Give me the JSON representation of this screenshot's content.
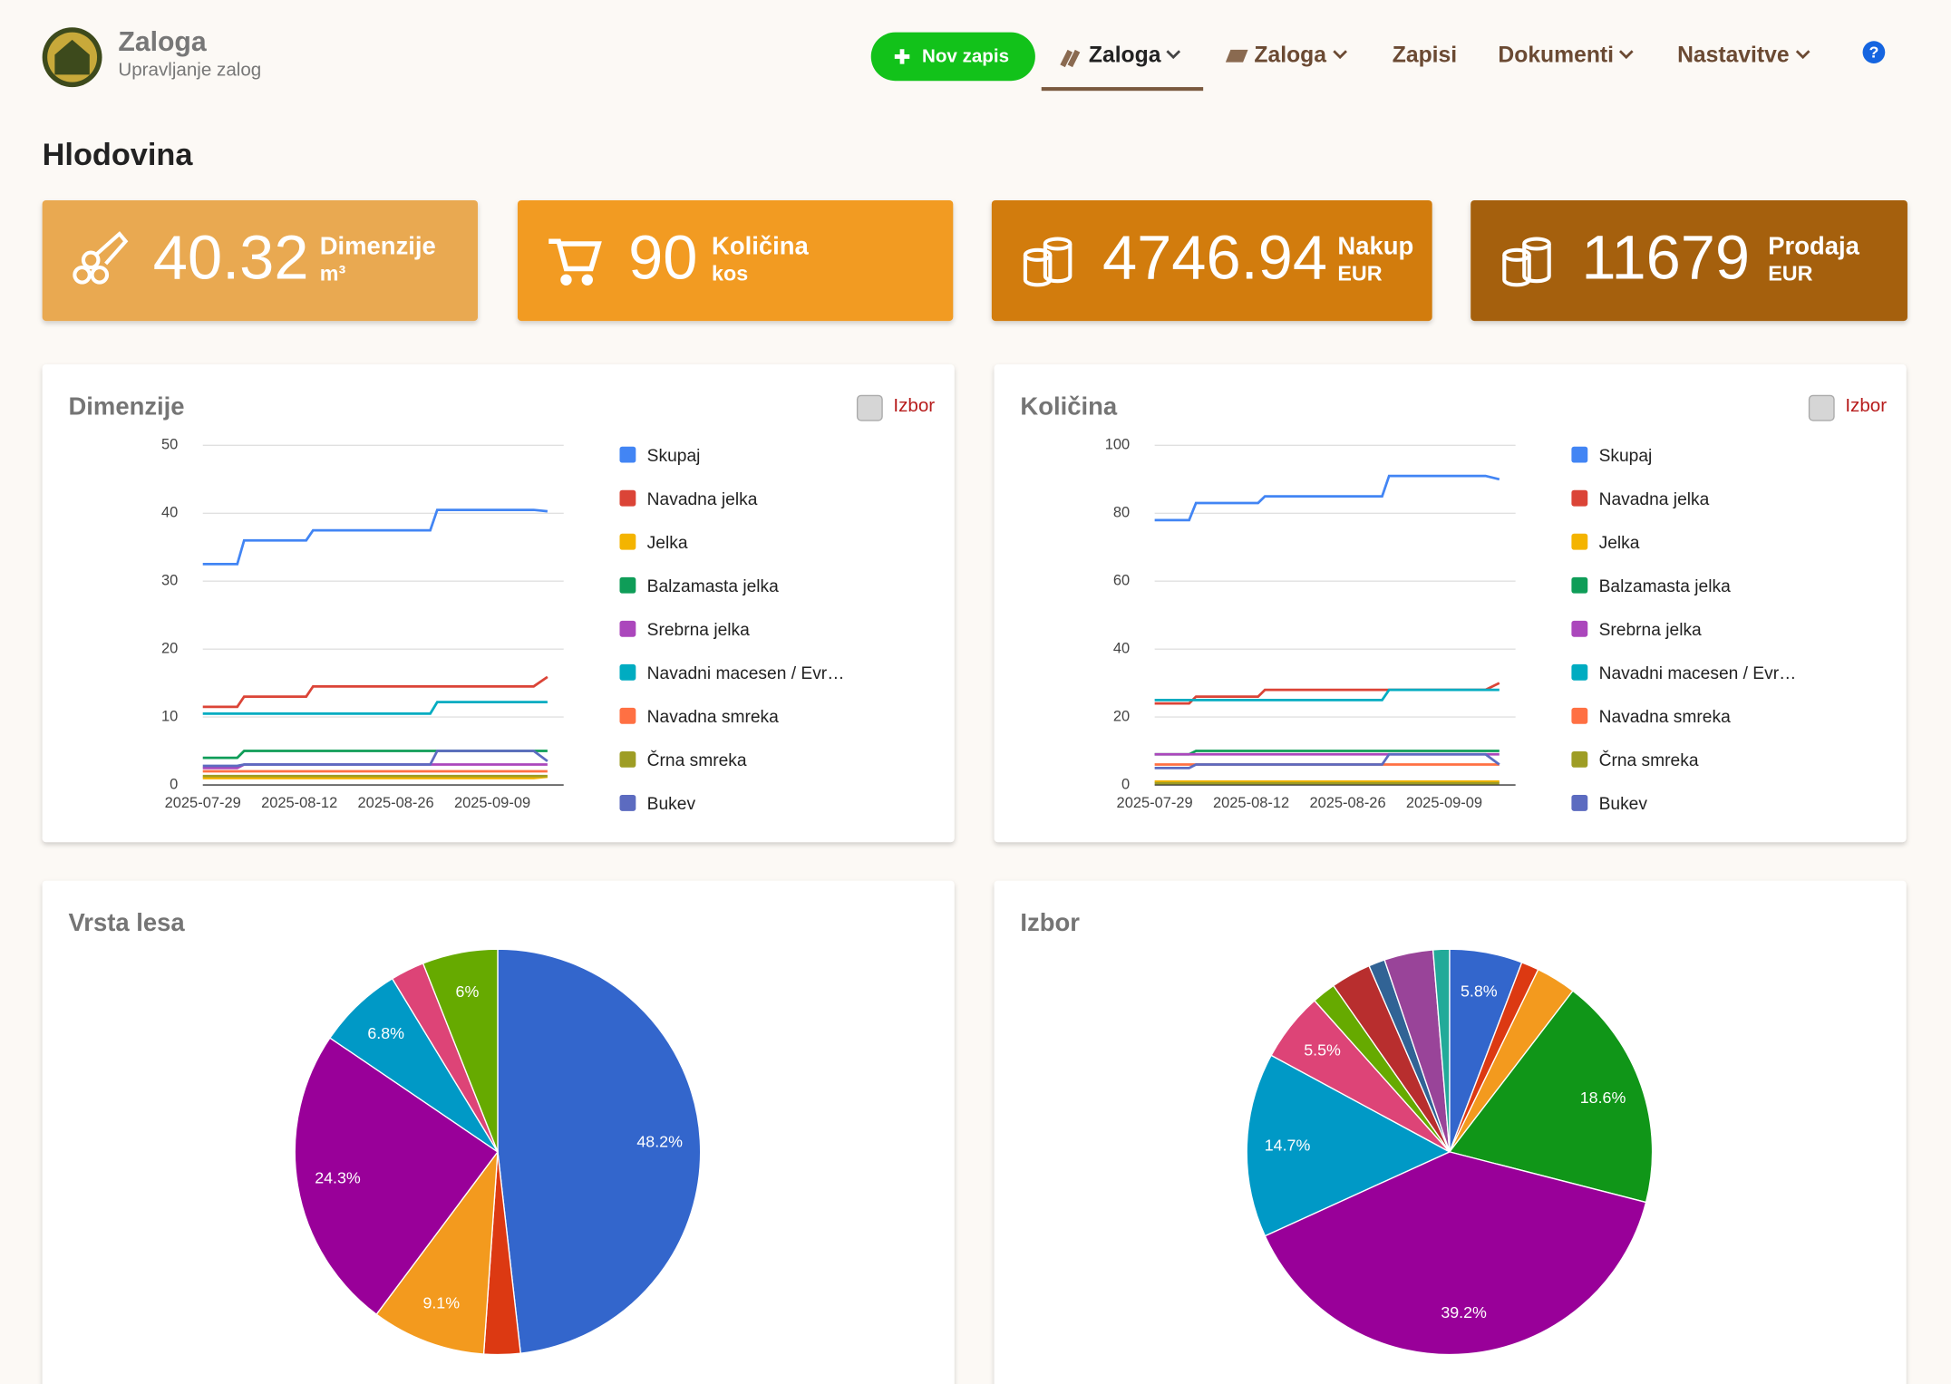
{
  "header": {
    "app_title": "Zaloga",
    "app_subtitle": "Upravljanje zalog",
    "new_button": "Nov zapis",
    "nav": [
      "Zaloga",
      "Zaloga",
      "Zapisi",
      "Dokumenti",
      "Nastavitve"
    ],
    "help": "?"
  },
  "page_title": "Hlodovina",
  "stats": [
    {
      "value": 40.32,
      "label": "Dimenzije",
      "unit": "m³"
    },
    {
      "value": 90,
      "label": "Količina",
      "unit": "kos"
    },
    {
      "value": 4746.94,
      "label": "Nakup",
      "unit": "EUR"
    },
    {
      "value": 11679,
      "label": "Prodaja",
      "unit": "EUR"
    }
  ],
  "chart_data": [
    {
      "type": "line",
      "title": "Dimenzije",
      "toggle_label": "Izbor",
      "x": [
        "2025-07-29",
        "2025-08-03",
        "2025-08-04",
        "2025-08-13",
        "2025-08-14",
        "2025-08-31",
        "2025-09-01",
        "2025-09-15",
        "2025-09-17"
      ],
      "xlim": [
        "2025-07-29",
        "2025-09-17"
      ],
      "xticks": [
        "2025-07-29",
        "2025-08-12",
        "2025-08-26",
        "2025-09-09"
      ],
      "ylim": [
        0,
        50
      ],
      "yticks": [
        0,
        10,
        20,
        30,
        40,
        50
      ],
      "grid": true,
      "legend": "right",
      "series": [
        {
          "name": "Skupaj",
          "color": "#4285f4",
          "values": [
            32.5,
            32.5,
            36,
            36,
            37.5,
            37.5,
            40.5,
            40.5,
            40.3
          ]
        },
        {
          "name": "Navadna jelka",
          "color": "#db4437",
          "values": [
            11.5,
            11.5,
            13,
            13,
            14.5,
            14.5,
            14.5,
            14.5,
            15.9
          ]
        },
        {
          "name": "Jelka",
          "color": "#f4b400",
          "values": [
            1,
            1,
            1,
            1,
            1,
            1,
            1,
            1,
            1.2
          ]
        },
        {
          "name": "Balzamasta jelka",
          "color": "#0f9d58",
          "values": [
            4,
            4,
            5,
            5,
            5,
            5,
            5,
            5,
            5
          ]
        },
        {
          "name": "Srebrna jelka",
          "color": "#ab47bc",
          "values": [
            2.5,
            2.5,
            3,
            3,
            3,
            3,
            3,
            3,
            3
          ]
        },
        {
          "name": "Navadni macesen / Evr…",
          "color": "#00acc1",
          "values": [
            10.5,
            10.5,
            10.5,
            10.5,
            10.5,
            10.5,
            12.2,
            12.2,
            12.2
          ]
        },
        {
          "name": "Navadna smreka",
          "color": "#ff7043",
          "values": [
            2,
            2,
            2,
            2,
            2,
            2,
            2,
            2,
            2
          ]
        },
        {
          "name": "Črna smreka",
          "color": "#9e9d24",
          "values": [
            1.3,
            1.3,
            1.3,
            1.3,
            1.3,
            1.3,
            1.3,
            1.3,
            1.3
          ]
        },
        {
          "name": "Bukev",
          "color": "#5c6bc0",
          "values": [
            2.8,
            2.8,
            3,
            3,
            3,
            3,
            5,
            5,
            3.5
          ]
        }
      ]
    },
    {
      "type": "line",
      "title": "Količina",
      "toggle_label": "Izbor",
      "x": [
        "2025-07-29",
        "2025-08-03",
        "2025-08-04",
        "2025-08-13",
        "2025-08-14",
        "2025-08-31",
        "2025-09-01",
        "2025-09-15",
        "2025-09-17"
      ],
      "xlim": [
        "2025-07-29",
        "2025-09-17"
      ],
      "xticks": [
        "2025-07-29",
        "2025-08-12",
        "2025-08-26",
        "2025-09-09"
      ],
      "ylim": [
        0,
        100
      ],
      "yticks": [
        0,
        20,
        40,
        60,
        80,
        100
      ],
      "grid": true,
      "legend": "right",
      "series": [
        {
          "name": "Skupaj",
          "color": "#4285f4",
          "values": [
            78,
            78,
            83,
            83,
            85,
            85,
            91,
            91,
            90
          ]
        },
        {
          "name": "Navadna jelka",
          "color": "#db4437",
          "values": [
            24,
            24,
            26,
            26,
            28,
            28,
            28,
            28,
            30
          ]
        },
        {
          "name": "Jelka",
          "color": "#f4b400",
          "values": [
            1,
            1,
            1,
            1,
            1,
            1,
            1,
            1,
            1
          ]
        },
        {
          "name": "Balzamasta jelka",
          "color": "#0f9d58",
          "values": [
            9,
            9,
            10,
            10,
            10,
            10,
            10,
            10,
            10
          ]
        },
        {
          "name": "Srebrna jelka",
          "color": "#ab47bc",
          "values": [
            9,
            9,
            9,
            9,
            9,
            9,
            9,
            9,
            9
          ]
        },
        {
          "name": "Navadni macesen / Evr…",
          "color": "#00acc1",
          "values": [
            25,
            25,
            25,
            25,
            25,
            25,
            28,
            28,
            28
          ]
        },
        {
          "name": "Navadna smreka",
          "color": "#ff7043",
          "values": [
            6,
            6,
            6,
            6,
            6,
            6,
            6,
            6,
            6
          ]
        },
        {
          "name": "Črna smreka",
          "color": "#9e9d24",
          "values": [
            0.5,
            0.5,
            0.5,
            0.5,
            0.5,
            0.5,
            0.5,
            0.5,
            0.5
          ]
        },
        {
          "name": "Bukev",
          "color": "#5c6bc0",
          "values": [
            5,
            5,
            6,
            6,
            6,
            6,
            9,
            9,
            6
          ]
        }
      ]
    },
    {
      "type": "pie",
      "title": "Vrsta lesa",
      "values": [
        48.2,
        2.9,
        9.1,
        24.3,
        6.8,
        2.7,
        6
      ],
      "value_labels": [
        "48.2%",
        null,
        "9.1%",
        "24.3%",
        "6.8%",
        null,
        "6%"
      ],
      "colors": [
        "#3366cc",
        "#dc3912",
        "#f39a1e",
        "#990099",
        "#0099c6",
        "#dd4477",
        "#66aa00"
      ]
    },
    {
      "type": "pie",
      "title": "Izbor",
      "values": [
        5.8,
        1.4,
        3.2,
        18.6,
        39.2,
        14.7,
        5.5,
        1.9,
        3.2,
        1.3,
        3.9,
        1.3
      ],
      "value_labels": [
        "5.8%",
        null,
        null,
        "18.6%",
        "39.2%",
        "14.7%",
        "5.5%",
        null,
        null,
        null,
        null,
        null
      ],
      "colors": [
        "#3366cc",
        "#dc3912",
        "#f39a1e",
        "#109618",
        "#990099",
        "#0099c6",
        "#dd4477",
        "#66aa00",
        "#b82e2e",
        "#316395",
        "#994499",
        "#22aa99"
      ]
    }
  ]
}
